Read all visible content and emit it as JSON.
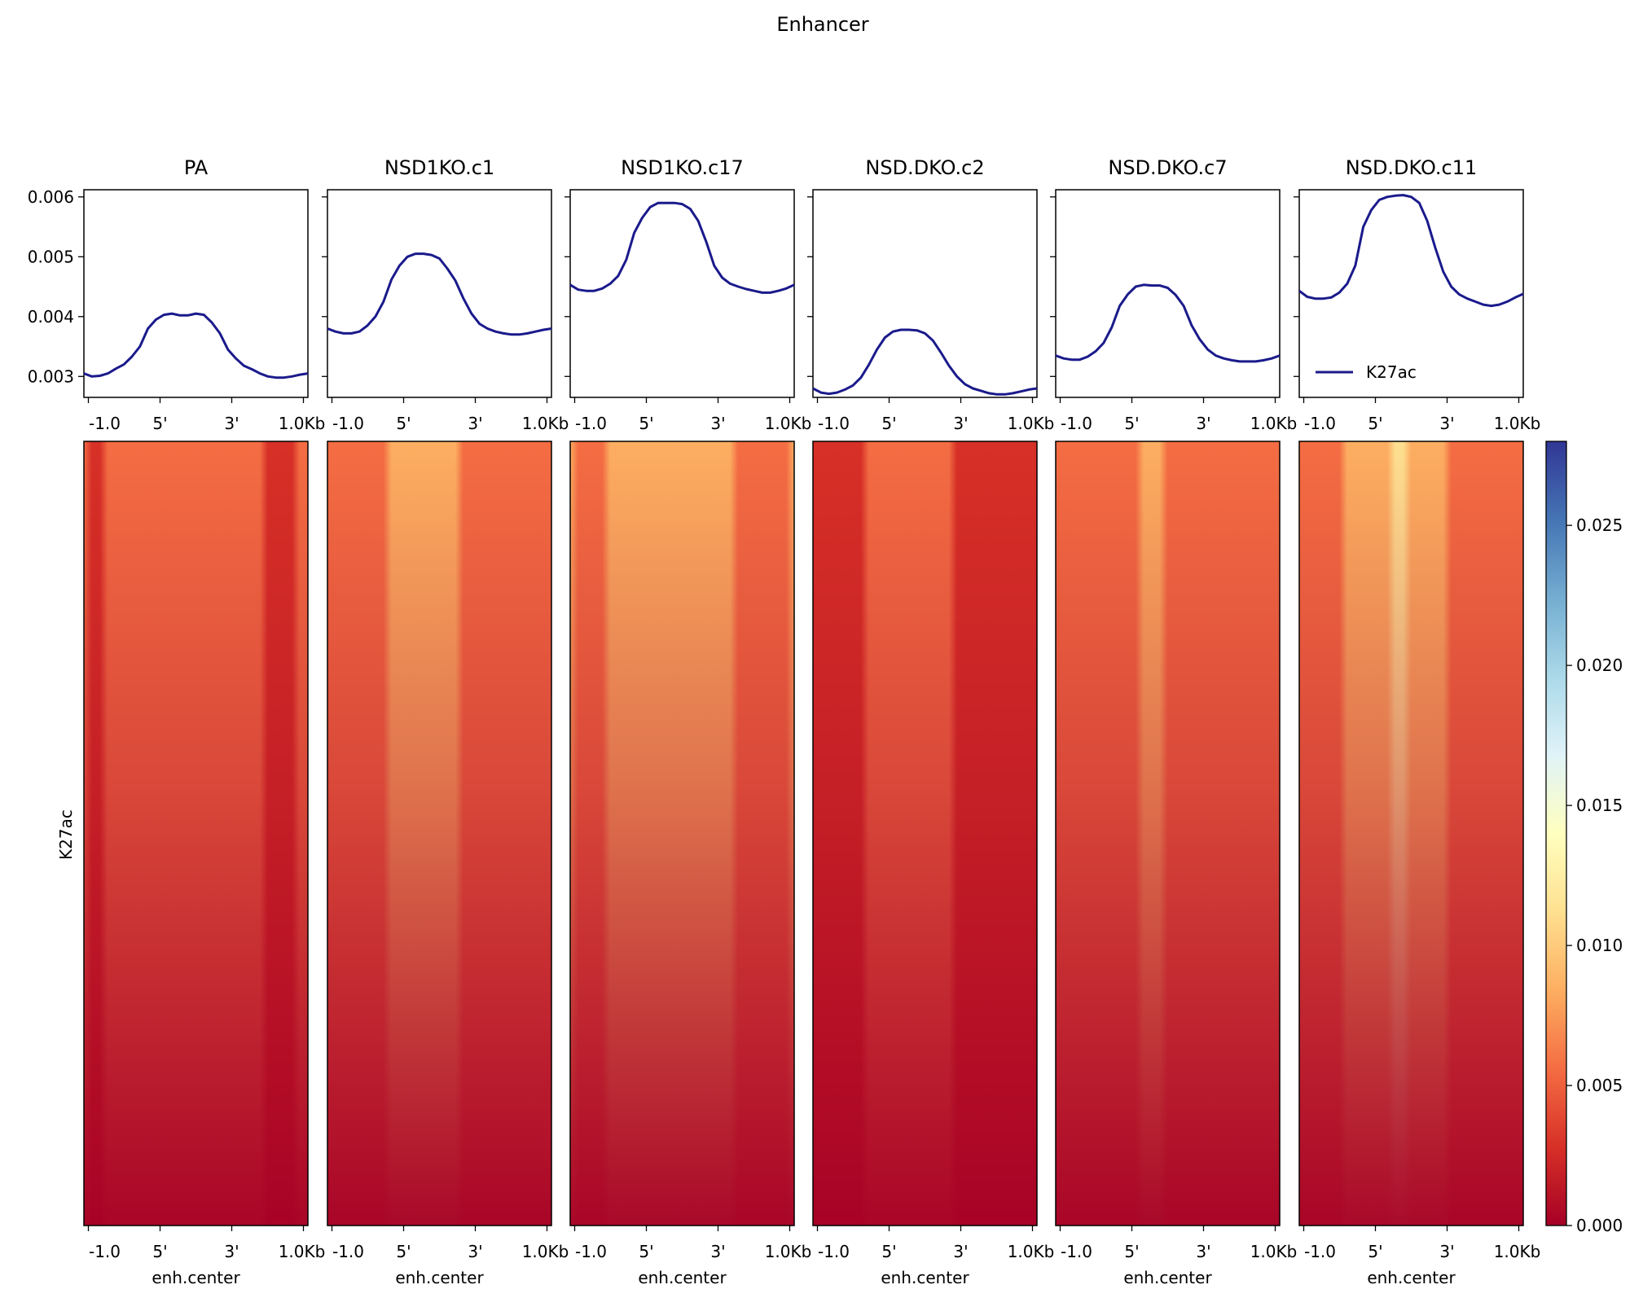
{
  "figure": {
    "title": "Enhancer",
    "row_label": "K27ac",
    "tick_labels": [
      "-1.0",
      "5'",
      "3'",
      "1.0Kb"
    ],
    "xlabel": "enh.center",
    "legend_label": "K27ac",
    "line_color": "#1a1a8c"
  },
  "chart_data": [
    {
      "type": "line",
      "panel": "profile",
      "title": "PA",
      "ylim": [
        0.00265,
        0.00612
      ],
      "yticks": [
        0.003,
        0.004,
        0.005,
        0.006
      ],
      "ytick_labels": [
        "0.003",
        "0.004",
        "0.005",
        "0.006"
      ],
      "x": [
        0,
        1,
        2,
        3,
        4,
        5,
        6,
        7,
        8,
        9,
        10,
        11,
        12,
        13,
        14,
        15,
        16,
        17,
        18,
        19,
        20,
        21,
        22,
        23,
        24,
        25,
        26,
        27,
        28
      ],
      "series": [
        {
          "name": "K27ac",
          "values": [
            0.00305,
            0.003,
            0.00301,
            0.00305,
            0.00313,
            0.0032,
            0.00333,
            0.0035,
            0.0038,
            0.00395,
            0.00403,
            0.00405,
            0.00402,
            0.00402,
            0.00405,
            0.00403,
            0.0039,
            0.00372,
            0.00345,
            0.0033,
            0.00318,
            0.00312,
            0.00305,
            0.003,
            0.00298,
            0.00298,
            0.003,
            0.00303,
            0.00305
          ]
        }
      ]
    },
    {
      "type": "line",
      "panel": "profile",
      "title": "NSD1KO.c1",
      "x": [
        0,
        1,
        2,
        3,
        4,
        5,
        6,
        7,
        8,
        9,
        10,
        11,
        12,
        13,
        14,
        15,
        16,
        17,
        18,
        19,
        20,
        21,
        22,
        23,
        24,
        25,
        26,
        27,
        28
      ],
      "series": [
        {
          "name": "K27ac",
          "values": [
            0.0038,
            0.00375,
            0.00372,
            0.00372,
            0.00375,
            0.00385,
            0.004,
            0.00425,
            0.00462,
            0.00485,
            0.005,
            0.00505,
            0.00505,
            0.00503,
            0.00497,
            0.0048,
            0.0046,
            0.0043,
            0.00405,
            0.00388,
            0.0038,
            0.00375,
            0.00372,
            0.0037,
            0.0037,
            0.00372,
            0.00375,
            0.00378,
            0.0038
          ]
        }
      ]
    },
    {
      "type": "line",
      "panel": "profile",
      "title": "NSD1KO.c17",
      "x": [
        0,
        1,
        2,
        3,
        4,
        5,
        6,
        7,
        8,
        9,
        10,
        11,
        12,
        13,
        14,
        15,
        16,
        17,
        18,
        19,
        20,
        21,
        22,
        23,
        24,
        25,
        26,
        27,
        28
      ],
      "series": [
        {
          "name": "K27ac",
          "values": [
            0.00453,
            0.00445,
            0.00443,
            0.00443,
            0.00447,
            0.00455,
            0.00468,
            0.00495,
            0.0054,
            0.00565,
            0.00583,
            0.0059,
            0.0059,
            0.0059,
            0.00588,
            0.0058,
            0.0056,
            0.00525,
            0.00485,
            0.00465,
            0.00455,
            0.0045,
            0.00446,
            0.00443,
            0.0044,
            0.0044,
            0.00443,
            0.00447,
            0.00453
          ]
        }
      ]
    },
    {
      "type": "line",
      "panel": "profile",
      "title": "NSD.DKO.c2",
      "x": [
        0,
        1,
        2,
        3,
        4,
        5,
        6,
        7,
        8,
        9,
        10,
        11,
        12,
        13,
        14,
        15,
        16,
        17,
        18,
        19,
        20,
        21,
        22,
        23,
        24,
        25,
        26,
        27,
        28
      ],
      "series": [
        {
          "name": "K27ac",
          "values": [
            0.0028,
            0.00273,
            0.00271,
            0.00273,
            0.00278,
            0.00285,
            0.00298,
            0.0032,
            0.00345,
            0.00365,
            0.00375,
            0.00378,
            0.00378,
            0.00377,
            0.00372,
            0.0036,
            0.0034,
            0.00318,
            0.003,
            0.00287,
            0.0028,
            0.00276,
            0.00272,
            0.0027,
            0.0027,
            0.00272,
            0.00275,
            0.00278,
            0.0028
          ]
        }
      ]
    },
    {
      "type": "line",
      "panel": "profile",
      "title": "NSD.DKO.c7",
      "x": [
        0,
        1,
        2,
        3,
        4,
        5,
        6,
        7,
        8,
        9,
        10,
        11,
        12,
        13,
        14,
        15,
        16,
        17,
        18,
        19,
        20,
        21,
        22,
        23,
        24,
        25,
        26,
        27,
        28
      ],
      "series": [
        {
          "name": "K27ac",
          "values": [
            0.00335,
            0.0033,
            0.00328,
            0.00328,
            0.00333,
            0.00342,
            0.00356,
            0.00382,
            0.00418,
            0.00437,
            0.0045,
            0.00453,
            0.00452,
            0.00452,
            0.00448,
            0.00436,
            0.00418,
            0.00385,
            0.00362,
            0.00345,
            0.00335,
            0.0033,
            0.00327,
            0.00325,
            0.00325,
            0.00325,
            0.00327,
            0.0033,
            0.00335
          ]
        }
      ]
    },
    {
      "type": "line",
      "panel": "profile",
      "title": "NSD.DKO.c11",
      "x": [
        0,
        1,
        2,
        3,
        4,
        5,
        6,
        7,
        8,
        9,
        10,
        11,
        12,
        13,
        14,
        15,
        16,
        17,
        18,
        19,
        20,
        21,
        22,
        23,
        24,
        25,
        26,
        27,
        28
      ],
      "series": [
        {
          "name": "K27ac",
          "values": [
            0.00443,
            0.00433,
            0.0043,
            0.0043,
            0.00432,
            0.0044,
            0.00455,
            0.00485,
            0.0055,
            0.00578,
            0.00595,
            0.006,
            0.00602,
            0.00603,
            0.006,
            0.0059,
            0.0056,
            0.00515,
            0.00475,
            0.0045,
            0.00437,
            0.0043,
            0.00425,
            0.0042,
            0.00418,
            0.0042,
            0.00425,
            0.00432,
            0.00438
          ]
        }
      ]
    },
    {
      "type": "heatmap",
      "columns": [
        "PA",
        "NSD1KO.c1",
        "NSD1KO.c17",
        "NSD.DKO.c2",
        "NSD.DKO.c7",
        "NSD.DKO.c11"
      ],
      "row_label": "K27ac",
      "colormap": [
        "#a50026",
        "#d73027",
        "#f46d43",
        "#fdae61",
        "#fee090",
        "#ffffbf",
        "#e0f3f8",
        "#abd9e9",
        "#74add1",
        "#4575b4",
        "#313695"
      ],
      "value_range": [
        0.0,
        0.028
      ],
      "colorbar_ticks": [
        0.0,
        0.005,
        0.01,
        0.015,
        0.02,
        0.025
      ],
      "colorbar_tick_labels": [
        "0.000",
        "0.005",
        "0.010",
        "0.015",
        "0.020",
        "0.025"
      ]
    }
  ]
}
